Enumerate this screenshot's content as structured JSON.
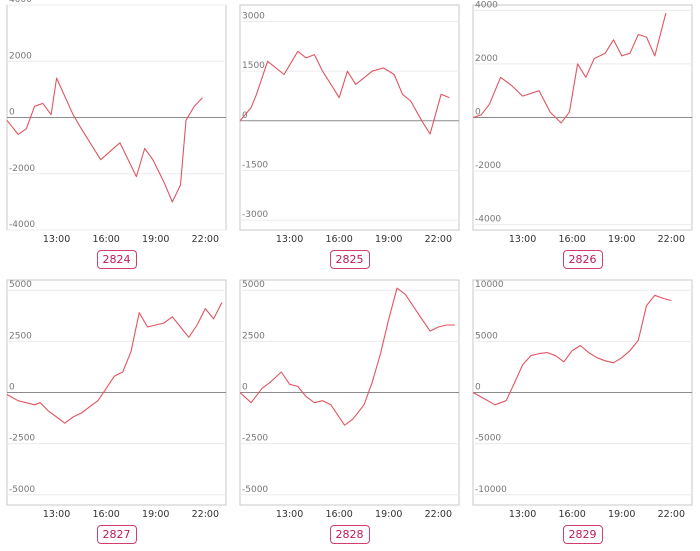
{
  "line_color": "#e05562",
  "badge_color": "#c2185b",
  "chart_data": [
    {
      "type": "line",
      "label": "2824",
      "ylim": [
        -4000,
        4000
      ],
      "yticks": [
        4000,
        2000,
        0,
        -2000,
        -4000
      ],
      "ytick_labels": [
        "4000",
        "2000",
        "0",
        "-2000",
        "-4000"
      ],
      "xlim": [
        10.0,
        23.25
      ],
      "xticks": [
        13,
        16,
        19,
        22
      ],
      "xtick_labels": [
        "13:00",
        "16:00",
        "19:00",
        "22:00"
      ],
      "x": [
        10.0,
        10.67,
        11.17,
        11.67,
        12.17,
        12.67,
        13.0,
        14.0,
        14.5,
        15.67,
        16.83,
        17.83,
        18.33,
        18.83,
        19.5,
        20.0,
        20.5,
        20.83,
        21.33,
        21.83
      ],
      "y": [
        -100,
        -600,
        -400,
        400,
        500,
        100,
        1400,
        100,
        -400,
        -1500,
        -900,
        -2100,
        -1100,
        -1500,
        -2300,
        -3000,
        -2400,
        -100,
        400,
        700
      ]
    },
    {
      "type": "line",
      "label": "2825",
      "ylim": [
        -3300,
        3500
      ],
      "yticks": [
        3000,
        1500,
        0,
        -1500,
        -3000
      ],
      "ytick_labels": [
        "3000",
        "1500",
        "0",
        "-1500",
        "-3000"
      ],
      "xlim": [
        10.0,
        23.25
      ],
      "xticks": [
        13,
        16,
        19,
        22
      ],
      "xtick_labels": [
        "13:00",
        "16:00",
        "19:00",
        "22:00"
      ],
      "x": [
        10.0,
        10.67,
        11.0,
        11.67,
        12.67,
        13.5,
        14.0,
        14.5,
        15.0,
        16.0,
        16.5,
        17.0,
        18.0,
        18.67,
        19.33,
        19.83,
        20.33,
        21.0,
        21.5,
        22.17,
        22.67
      ],
      "y": [
        0,
        400,
        800,
        1800,
        1400,
        2100,
        1900,
        2000,
        1500,
        700,
        1500,
        1100,
        1500,
        1600,
        1400,
        800,
        600,
        0,
        -400,
        800,
        700
      ]
    },
    {
      "type": "line",
      "label": "2826",
      "ylim": [
        -4200,
        4200
      ],
      "yticks": [
        4000,
        2000,
        0,
        -2000,
        -4000
      ],
      "ytick_labels": [
        "4000",
        "2000",
        "0",
        "-2000",
        "-4000"
      ],
      "xlim": [
        10.0,
        23.25
      ],
      "xticks": [
        13,
        16,
        19,
        22
      ],
      "xtick_labels": [
        "13:00",
        "16:00",
        "19:00",
        "22:00"
      ],
      "x": [
        10.0,
        10.5,
        11.0,
        11.67,
        12.33,
        13.0,
        14.0,
        14.67,
        15.33,
        15.83,
        16.33,
        16.83,
        17.33,
        18.0,
        18.5,
        19.0,
        19.5,
        20.0,
        20.5,
        21.0,
        21.67
      ],
      "y": [
        0,
        100,
        500,
        1500,
        1200,
        800,
        1000,
        200,
        -200,
        200,
        2000,
        1500,
        2200,
        2400,
        2900,
        2300,
        2400,
        3100,
        3000,
        2300,
        3900
      ]
    },
    {
      "type": "line",
      "label": "2827",
      "ylim": [
        -5500,
        5500
      ],
      "yticks": [
        5000,
        2500,
        0,
        -2500,
        -5000
      ],
      "ytick_labels": [
        "5000",
        "2500",
        "0",
        "-2500",
        "-5000"
      ],
      "xlim": [
        10.0,
        23.25
      ],
      "xticks": [
        13,
        16,
        19,
        22
      ],
      "xtick_labels": [
        "13:00",
        "16:00",
        "19:00",
        "22:00"
      ],
      "x": [
        10.0,
        10.67,
        11.67,
        12.0,
        12.5,
        13.0,
        13.5,
        14.0,
        14.5,
        15.0,
        15.5,
        16.0,
        16.5,
        17.0,
        17.5,
        18.0,
        18.5,
        19.0,
        19.5,
        20.0,
        20.5,
        21.0,
        21.5,
        22.0,
        22.5,
        23.0
      ],
      "y": [
        -100,
        -400,
        -600,
        -500,
        -900,
        -1200,
        -1500,
        -1200,
        -1000,
        -700,
        -400,
        200,
        800,
        1000,
        2000,
        3900,
        3200,
        3300,
        3400,
        3700,
        3200,
        2700,
        3300,
        4100,
        3600,
        4400
      ]
    },
    {
      "type": "line",
      "label": "2828",
      "ylim": [
        -5500,
        5500
      ],
      "yticks": [
        5000,
        2500,
        0,
        -2500,
        -5000
      ],
      "ytick_labels": [
        "5000",
        "2500",
        "0",
        "-2500",
        "-5000"
      ],
      "xlim": [
        10.0,
        23.25
      ],
      "xticks": [
        13,
        16,
        19,
        22
      ],
      "xtick_labels": [
        "13:00",
        "16:00",
        "19:00",
        "22:00"
      ],
      "x": [
        10.0,
        10.67,
        11.33,
        11.83,
        12.5,
        13.0,
        13.5,
        14.0,
        14.5,
        15.0,
        15.5,
        16.33,
        16.83,
        17.5,
        18.0,
        18.5,
        19.0,
        19.5,
        20.0,
        20.5,
        21.0,
        21.5,
        22.0,
        22.5,
        23.0
      ],
      "y": [
        0,
        -500,
        200,
        500,
        1000,
        400,
        300,
        -200,
        -500,
        -400,
        -600,
        -1600,
        -1300,
        -600,
        500,
        1900,
        3600,
        5100,
        4800,
        4200,
        3600,
        3000,
        3200,
        3300,
        3300
      ]
    },
    {
      "type": "line",
      "label": "2829",
      "ylim": [
        -11000,
        11000
      ],
      "yticks": [
        10000,
        5000,
        0,
        -5000,
        -10000
      ],
      "ytick_labels": [
        "10000",
        "5000",
        "0",
        "-5000",
        "-10000"
      ],
      "xlim": [
        10.0,
        23.25
      ],
      "xticks": [
        13,
        16,
        19,
        22
      ],
      "xtick_labels": [
        "13:00",
        "16:00",
        "19:00",
        "22:00"
      ],
      "x": [
        10.0,
        10.67,
        11.33,
        12.0,
        12.5,
        13.0,
        13.5,
        14.0,
        14.5,
        15.0,
        15.5,
        16.0,
        16.5,
        17.0,
        17.5,
        18.0,
        18.5,
        19.0,
        19.5,
        20.0,
        20.5,
        21.0,
        21.5,
        22.0
      ],
      "y": [
        0,
        -600,
        -1200,
        -800,
        900,
        2700,
        3600,
        3800,
        3900,
        3600,
        3000,
        4100,
        4600,
        3900,
        3400,
        3100,
        2900,
        3400,
        4100,
        5100,
        8500,
        9500,
        9200,
        9000
      ]
    }
  ]
}
